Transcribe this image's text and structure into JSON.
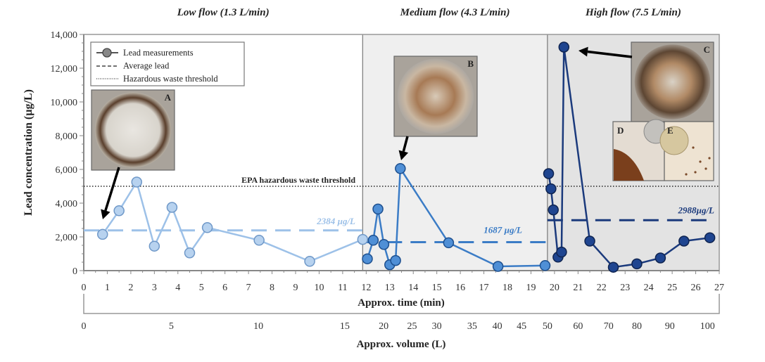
{
  "chart_data": {
    "type": "line",
    "ylabel": "Lead concentration (µg/L)",
    "xlabel": "Approx. time (min)",
    "x2label": "Approx. volume (L)",
    "ylim": [
      0,
      14000
    ],
    "xlim": [
      0,
      27
    ],
    "yticks": [
      0,
      2000,
      4000,
      6000,
      8000,
      10000,
      12000,
      14000
    ],
    "ytick_labels": [
      "0",
      "2,000",
      "4,000",
      "6,000",
      "8,000",
      "10,000",
      "12,000",
      "14,000"
    ],
    "xticks": [
      0,
      1,
      2,
      3,
      4,
      5,
      6,
      7,
      8,
      9,
      10,
      11,
      12,
      13,
      14,
      15,
      16,
      17,
      18,
      19,
      20,
      21,
      22,
      23,
      24,
      25,
      26,
      27
    ],
    "volume_ticks": [
      {
        "label": "0",
        "at_min": 0
      },
      {
        "label": "5",
        "at_min": 3.72
      },
      {
        "label": "10",
        "at_min": 7.42
      },
      {
        "label": "15",
        "at_min": 11.09
      },
      {
        "label": "20",
        "at_min": 12.74
      },
      {
        "label": "25",
        "at_min": 13.95
      },
      {
        "label": "30",
        "at_min": 15.0
      },
      {
        "label": "35",
        "at_min": 16.5
      },
      {
        "label": "40",
        "at_min": 17.57
      },
      {
        "label": "45",
        "at_min": 18.6
      },
      {
        "label": "50",
        "at_min": 19.7
      },
      {
        "label": "60",
        "at_min": 21.0
      },
      {
        "label": "70",
        "at_min": 22.3
      },
      {
        "label": "80",
        "at_min": 23.5
      },
      {
        "label": "90",
        "at_min": 24.9
      },
      {
        "label": "100",
        "at_min": 26.5
      }
    ],
    "regions": [
      {
        "title": "Low flow (1.3 L/min)",
        "start": 0,
        "end": 11.85,
        "fill": "#ffffff"
      },
      {
        "title": "Medium flow (4.3 L/min)",
        "start": 11.85,
        "end": 19.7,
        "fill": "#efefef"
      },
      {
        "title": "High flow (7.5 L/min)",
        "start": 19.7,
        "end": 27,
        "fill": "#e3e3e3"
      }
    ],
    "series": [
      {
        "name": "Low flow",
        "color": "#9dc1e8",
        "fill": "#b7d2ef",
        "x": [
          0.8,
          1.5,
          2.25,
          3.0,
          3.75,
          4.5,
          5.25,
          7.45,
          9.6,
          11.85
        ],
        "y": [
          2150,
          3550,
          5250,
          1450,
          3750,
          1050,
          2550,
          1800,
          550,
          1850
        ],
        "average": 2384,
        "average_label": "2384 µg/L"
      },
      {
        "name": "Medium flow",
        "color": "#3b7cc6",
        "fill": "#4f8fd6",
        "x": [
          12.05,
          12.3,
          12.5,
          12.75,
          13.0,
          13.25,
          13.45,
          15.5,
          17.6,
          19.6
        ],
        "y": [
          700,
          1800,
          3650,
          1550,
          350,
          600,
          6050,
          1650,
          250,
          300
        ],
        "average": 1687,
        "average_label": "1687 µg/L"
      },
      {
        "name": "High flow",
        "color": "#1b3a7c",
        "fill": "#1f4590",
        "x": [
          19.75,
          19.85,
          19.95,
          20.15,
          20.3,
          20.4,
          21.5,
          22.5,
          23.5,
          24.5,
          25.5,
          26.6
        ],
        "y": [
          5750,
          4850,
          3600,
          800,
          1100,
          13250,
          1750,
          200,
          400,
          750,
          1750,
          1950
        ],
        "average": 2988,
        "average_label": "2988µg/L"
      }
    ],
    "threshold": {
      "value": 5000,
      "label": "EPA hazardous waste threshold"
    },
    "legend": {
      "placement": "top-left",
      "entries": [
        "Lead measurements",
        "Average lead",
        "Hazardous waste threshold"
      ]
    },
    "photos": [
      "A",
      "B",
      "C",
      "D",
      "E"
    ]
  }
}
